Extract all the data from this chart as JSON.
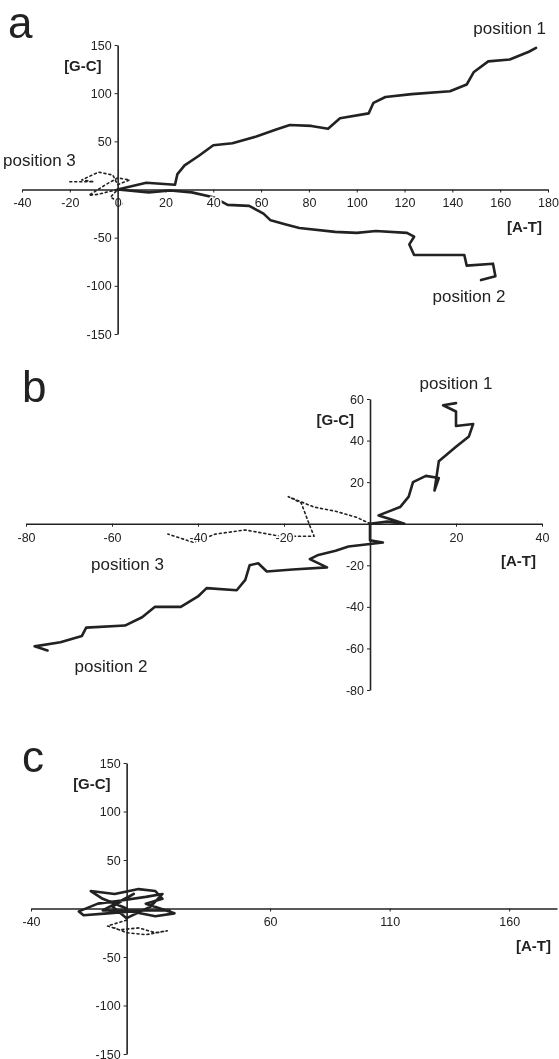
{
  "chart_data": [
    {
      "type": "line",
      "title": "a",
      "xlabel": "[A-T]",
      "ylabel": "[G-C]",
      "xlim": [
        -40,
        180
      ],
      "ylim": [
        -150,
        150
      ],
      "xticks": [
        -40,
        -20,
        0,
        20,
        40,
        60,
        80,
        100,
        120,
        140,
        160,
        180
      ],
      "yticks": [
        -150,
        -100,
        -50,
        50,
        100,
        150
      ],
      "grid": false,
      "marker": "none",
      "series": [
        {
          "name": "position 1",
          "color": "#222222",
          "line_style": "solid",
          "x": [
            0,
            12,
            24,
            25,
            28,
            34,
            40,
            48,
            58,
            66,
            72,
            81,
            88,
            93,
            105,
            107,
            112,
            123,
            139,
            146,
            149,
            155,
            164,
            172,
            175
          ],
          "values": [
            0,
            7,
            5,
            16,
            25,
            35,
            46,
            48,
            55,
            62,
            67,
            66,
            63,
            74,
            79,
            90,
            96,
            99,
            102,
            109,
            122,
            133,
            135,
            143,
            147
          ]
        },
        {
          "name": "position 2",
          "color": "#222222",
          "line_style": "solid",
          "x": [
            0,
            13,
            22,
            31,
            40,
            46,
            55,
            61,
            64,
            70,
            76,
            91,
            100,
            108,
            121,
            124,
            122,
            124,
            145,
            146,
            157,
            158,
            152
          ],
          "values": [
            0,
            -3,
            -1,
            -3,
            -8,
            -16,
            -17,
            -25,
            -32,
            -36,
            -40,
            -44,
            -45,
            -43,
            -45,
            -49,
            -57,
            -68,
            -68,
            -79,
            -77,
            -90,
            -94
          ]
        },
        {
          "name": "position 3",
          "color": "#222222",
          "line_style": "dotted",
          "x": [
            2,
            0,
            -3,
            0,
            -5,
            -8,
            -12,
            -5,
            0,
            5,
            0,
            -2,
            -8,
            -15,
            -10,
            -20
          ],
          "values": [
            -15,
            -12,
            -8,
            0,
            -3,
            -5,
            -6,
            5,
            12,
            10,
            5,
            15,
            18,
            10,
            8,
            8
          ]
        }
      ]
    },
    {
      "type": "line",
      "title": "b",
      "xlabel": "[A-T]",
      "ylabel": "[G-C]",
      "xlim": [
        -80,
        40
      ],
      "ylim": [
        -80,
        60
      ],
      "xticks": [
        -80,
        -60,
        -40,
        -20,
        20,
        40
      ],
      "yticks": [
        -80,
        -60,
        -40,
        -20,
        20,
        40,
        60
      ],
      "grid": false,
      "marker": "none",
      "series": [
        {
          "name": "position 1",
          "color": "#222222",
          "line_style": "solid",
          "x": [
            0,
            4,
            8,
            5,
            2,
            7,
            9,
            10,
            13,
            16,
            15,
            16,
            20,
            23,
            24,
            20,
            20,
            17,
            20
          ],
          "values": [
            0,
            1,
            0,
            2,
            4,
            8,
            13,
            20,
            23,
            22,
            16,
            30,
            37,
            42,
            48,
            47,
            54,
            57,
            58
          ]
        },
        {
          "name": "position 2",
          "color": "#222222",
          "line_style": "solid",
          "x": [
            0,
            0,
            3,
            -5,
            -8,
            -12,
            -14,
            -10,
            -18,
            -24,
            -26,
            -28,
            -29,
            -31,
            -38,
            -40,
            -44,
            -50,
            -53,
            -57,
            -66,
            -67,
            -72,
            -78,
            -75
          ],
          "values": [
            0,
            -8,
            -9,
            -11,
            -13,
            -15,
            -17,
            -21,
            -22,
            -23,
            -19,
            -20,
            -27,
            -32,
            -31,
            -35,
            -40,
            -40,
            -45,
            -49,
            -50,
            -54,
            -57,
            -59,
            -61
          ]
        },
        {
          "name": "position 3",
          "color": "#222222",
          "line_style": "dotted",
          "x": [
            0,
            -3,
            -8,
            -13,
            -19,
            -16,
            -14,
            -13,
            -21,
            -29,
            -36,
            -41,
            -47
          ],
          "values": [
            0,
            3,
            6,
            8,
            13,
            10,
            -1,
            -6,
            -6,
            -3,
            -5,
            -9,
            -5
          ]
        }
      ]
    },
    {
      "type": "line",
      "title": "c",
      "xlabel": "[A-T]",
      "ylabel": "[G-C]",
      "xlim": [
        -40,
        180
      ],
      "ylim": [
        -150,
        150
      ],
      "xticks": [
        -40,
        60,
        110,
        160
      ],
      "yticks": [
        -150,
        -100,
        -50,
        50,
        100,
        150
      ],
      "grid": false,
      "marker": "none",
      "series": [
        {
          "color": "#222222",
          "line_style": "solid",
          "x": [
            0,
            -10,
            -15,
            -5,
            5,
            12,
            15,
            8,
            20,
            12,
            2,
            -8,
            -18,
            -20,
            -12,
            -3,
            8,
            15,
            10,
            0,
            -6,
            3,
            -10,
            18
          ],
          "values": [
            0,
            10,
            18,
            15,
            20,
            18,
            10,
            5,
            -5,
            -8,
            -3,
            -5,
            -7,
            -3,
            5,
            8,
            12,
            15,
            2,
            -10,
            2,
            15,
            -2,
            -2
          ]
        },
        {
          "color": "#222222",
          "line_style": "dotted",
          "x": [
            0,
            -8,
            -3,
            5,
            12,
            17,
            8,
            0,
            -5
          ],
          "values": [
            -12,
            -18,
            -22,
            -20,
            -25,
            -23,
            -27,
            -25,
            -20
          ]
        }
      ]
    }
  ]
}
